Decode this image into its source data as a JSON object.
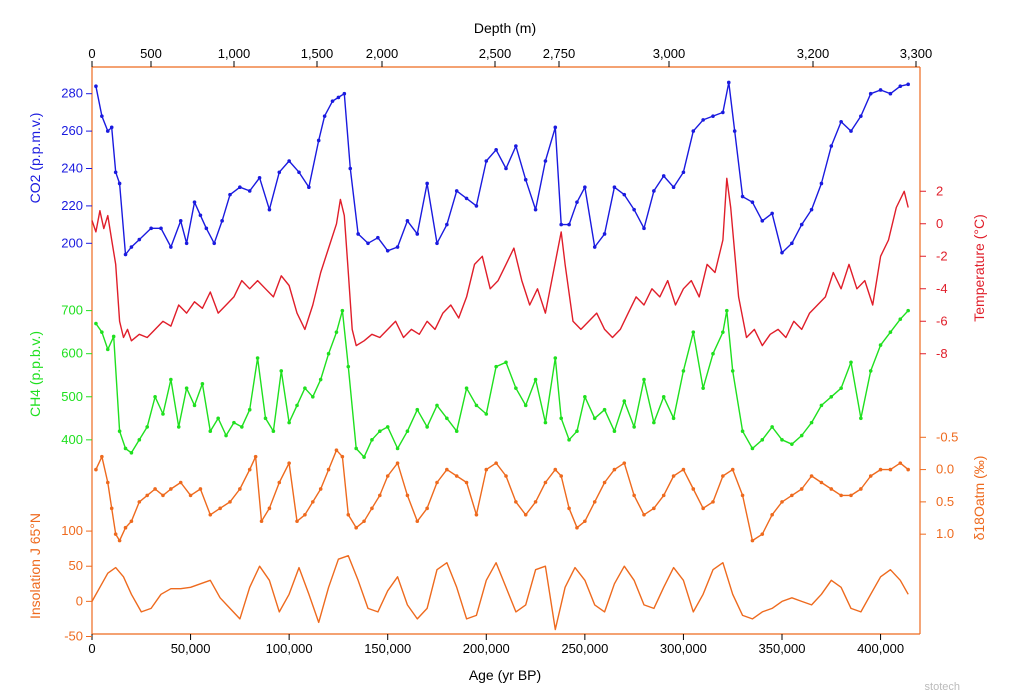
{
  "chart_data": {
    "type": "line",
    "top_axis": {
      "title": "Depth (m)",
      "ticks": [
        "0",
        "500",
        "1,000",
        "1,500",
        "2,000",
        "2,500",
        "2,750",
        "3,000",
        "3,200",
        "3,300"
      ],
      "color": "#000000"
    },
    "bottom_axis": {
      "title": "Age (yr BP)",
      "ticks": [
        "0",
        "50,000",
        "100,000",
        "150,000",
        "200,000",
        "250,000",
        "300,000",
        "350,000",
        "400,000"
      ],
      "range": [
        0,
        420000
      ],
      "color": "#000000"
    },
    "series": [
      {
        "name": "CO2",
        "label": "CO2 (p.p.m.v.)",
        "color": "#1a1adf",
        "axis_side": "left",
        "ticks": [
          "280",
          "260",
          "240",
          "220",
          "200"
        ],
        "tick_values": [
          280,
          260,
          240,
          220,
          200
        ],
        "ylim": [
          190,
          290
        ],
        "markers": true,
        "x": [
          2000,
          5000,
          8000,
          10000,
          12000,
          14000,
          17000,
          20000,
          24000,
          30000,
          35000,
          40000,
          45000,
          48000,
          52000,
          55000,
          58000,
          62000,
          66000,
          70000,
          75000,
          80000,
          85000,
          90000,
          95000,
          100000,
          105000,
          110000,
          115000,
          118000,
          122000,
          125000,
          128000,
          131000,
          135000,
          140000,
          145000,
          150000,
          155000,
          160000,
          165000,
          170000,
          175000,
          180000,
          185000,
          190000,
          195000,
          200000,
          205000,
          210000,
          215000,
          220000,
          225000,
          230000,
          235000,
          238000,
          242000,
          246000,
          250000,
          255000,
          260000,
          265000,
          270000,
          275000,
          280000,
          285000,
          290000,
          295000,
          300000,
          305000,
          310000,
          315000,
          320000,
          323000,
          326000,
          330000,
          335000,
          340000,
          345000,
          350000,
          355000,
          360000,
          365000,
          370000,
          375000,
          380000,
          385000,
          390000,
          395000,
          400000,
          405000,
          410000,
          414000
        ],
        "y": [
          284,
          268,
          260,
          262,
          238,
          232,
          194,
          198,
          202,
          208,
          208,
          198,
          212,
          200,
          222,
          215,
          208,
          200,
          212,
          226,
          230,
          228,
          235,
          218,
          238,
          244,
          238,
          230,
          255,
          268,
          276,
          278,
          280,
          240,
          205,
          200,
          203,
          196,
          198,
          212,
          205,
          232,
          200,
          210,
          228,
          224,
          220,
          244,
          250,
          240,
          252,
          234,
          218,
          244,
          262,
          210,
          210,
          222,
          230,
          198,
          205,
          230,
          226,
          218,
          208,
          228,
          236,
          230,
          238,
          260,
          266,
          268,
          270,
          286,
          260,
          225,
          222,
          212,
          216,
          195,
          200,
          210,
          218,
          232,
          252,
          265,
          260,
          268,
          280,
          282,
          280,
          284,
          285
        ]
      },
      {
        "name": "Temperature",
        "label": "Temperature (°C)",
        "color": "#e01e2a",
        "axis_side": "right",
        "ticks": [
          "2",
          "0",
          "-2",
          "-4",
          "-6",
          "-8"
        ],
        "tick_values": [
          2,
          0,
          -2,
          -4,
          -6,
          -8
        ],
        "ylim": [
          -9,
          3
        ],
        "markers": false,
        "x": [
          0,
          2000,
          4000,
          6000,
          8000,
          10000,
          12000,
          14000,
          16000,
          18000,
          20000,
          24000,
          28000,
          32000,
          36000,
          40000,
          44000,
          48000,
          52000,
          56000,
          60000,
          64000,
          68000,
          72000,
          76000,
          80000,
          84000,
          88000,
          92000,
          96000,
          100000,
          104000,
          108000,
          112000,
          116000,
          120000,
          124000,
          126000,
          128000,
          130000,
          132000,
          134000,
          138000,
          142000,
          146000,
          150000,
          154000,
          158000,
          162000,
          166000,
          170000,
          174000,
          178000,
          182000,
          186000,
          190000,
          194000,
          198000,
          202000,
          206000,
          210000,
          214000,
          218000,
          222000,
          226000,
          230000,
          234000,
          238000,
          240000,
          244000,
          248000,
          252000,
          256000,
          260000,
          264000,
          268000,
          272000,
          276000,
          280000,
          284000,
          288000,
          292000,
          296000,
          300000,
          304000,
          308000,
          312000,
          316000,
          320000,
          322000,
          324000,
          328000,
          332000,
          336000,
          340000,
          344000,
          348000,
          352000,
          356000,
          360000,
          364000,
          368000,
          372000,
          376000,
          380000,
          384000,
          388000,
          392000,
          396000,
          400000,
          404000,
          408000,
          412000,
          414000
        ],
        "y": [
          0.2,
          -0.5,
          0.8,
          -0.3,
          0.5,
          -1.0,
          -2.5,
          -6.0,
          -7.0,
          -6.5,
          -7.2,
          -6.8,
          -7.0,
          -6.5,
          -6.0,
          -6.3,
          -5.0,
          -5.5,
          -4.8,
          -5.2,
          -4.2,
          -5.5,
          -5.0,
          -4.5,
          -3.5,
          -4.0,
          -3.5,
          -4.0,
          -4.5,
          -3.2,
          -3.8,
          -5.5,
          -6.5,
          -5.0,
          -3.0,
          -1.5,
          0.0,
          1.5,
          0.5,
          -3.0,
          -6.5,
          -7.5,
          -7.2,
          -6.8,
          -7.0,
          -6.5,
          -6.0,
          -7.0,
          -6.5,
          -6.8,
          -6.0,
          -6.5,
          -5.5,
          -5.0,
          -5.8,
          -4.5,
          -2.5,
          -2.0,
          -4.0,
          -3.5,
          -2.5,
          -1.5,
          -3.5,
          -5.0,
          -4.0,
          -5.5,
          -3.0,
          -0.5,
          -2.5,
          -6.0,
          -6.5,
          -6.0,
          -5.5,
          -6.5,
          -7.0,
          -6.5,
          -5.5,
          -4.5,
          -5.0,
          -4.0,
          -4.5,
          -3.5,
          -5.0,
          -4.0,
          -3.5,
          -4.5,
          -2.5,
          -3.0,
          -1.0,
          2.8,
          1.0,
          -4.5,
          -7.0,
          -6.5,
          -7.5,
          -6.8,
          -6.5,
          -7.0,
          -6.0,
          -6.5,
          -5.5,
          -5.0,
          -4.5,
          -3.0,
          -4.0,
          -2.5,
          -4.0,
          -3.5,
          -5.0,
          -2.0,
          -1.0,
          1.0,
          2.0,
          1.0
        ]
      },
      {
        "name": "CH4",
        "label": "CH4 (p.p.b.v.)",
        "color": "#1fe01f",
        "axis_side": "left",
        "ticks": [
          "700",
          "600",
          "500",
          "400"
        ],
        "tick_values": [
          700,
          600,
          500,
          400
        ],
        "ylim": [
          330,
          720
        ],
        "markers": true,
        "x": [
          2000,
          5000,
          8000,
          11000,
          14000,
          17000,
          20000,
          24000,
          28000,
          32000,
          36000,
          40000,
          44000,
          48000,
          52000,
          56000,
          60000,
          64000,
          68000,
          72000,
          76000,
          80000,
          84000,
          88000,
          92000,
          96000,
          100000,
          104000,
          108000,
          112000,
          116000,
          120000,
          124000,
          127000,
          130000,
          134000,
          138000,
          142000,
          146000,
          150000,
          155000,
          160000,
          165000,
          170000,
          175000,
          180000,
          185000,
          190000,
          195000,
          200000,
          205000,
          210000,
          215000,
          220000,
          225000,
          230000,
          235000,
          238000,
          242000,
          246000,
          250000,
          255000,
          260000,
          265000,
          270000,
          275000,
          280000,
          285000,
          290000,
          295000,
          300000,
          305000,
          310000,
          315000,
          320000,
          322000,
          325000,
          330000,
          335000,
          340000,
          345000,
          350000,
          355000,
          360000,
          365000,
          370000,
          375000,
          380000,
          385000,
          390000,
          395000,
          400000,
          405000,
          410000,
          414000
        ],
        "y": [
          670,
          650,
          610,
          640,
          420,
          380,
          370,
          400,
          430,
          500,
          460,
          540,
          430,
          520,
          480,
          530,
          420,
          450,
          410,
          440,
          430,
          470,
          590,
          450,
          420,
          560,
          440,
          480,
          520,
          500,
          540,
          600,
          650,
          700,
          570,
          380,
          360,
          400,
          420,
          430,
          380,
          420,
          470,
          430,
          480,
          450,
          420,
          520,
          480,
          460,
          570,
          580,
          520,
          480,
          540,
          440,
          590,
          450,
          400,
          420,
          500,
          450,
          470,
          420,
          490,
          430,
          540,
          440,
          500,
          450,
          560,
          650,
          520,
          600,
          650,
          700,
          560,
          420,
          380,
          400,
          430,
          400,
          390,
          410,
          440,
          480,
          500,
          520,
          580,
          450,
          560,
          620,
          650,
          680,
          700
        ]
      },
      {
        "name": "δ18Oatm",
        "label": "δ18Oatm (‰)",
        "color": "#ee6a1e",
        "axis_side": "right",
        "ticks": [
          "-0.5",
          "0.0",
          "0.5",
          "1.0"
        ],
        "tick_values": [
          -0.5,
          0.0,
          0.5,
          1.0
        ],
        "ylim": [
          -1.0,
          1.4
        ],
        "invert": true,
        "markers": true,
        "x": [
          2000,
          5000,
          8000,
          10000,
          12000,
          14000,
          17000,
          20000,
          24000,
          28000,
          32000,
          36000,
          40000,
          45000,
          50000,
          55000,
          60000,
          65000,
          70000,
          75000,
          80000,
          83000,
          86000,
          90000,
          95000,
          100000,
          104000,
          108000,
          112000,
          116000,
          120000,
          124000,
          127000,
          130000,
          134000,
          138000,
          142000,
          146000,
          150000,
          155000,
          160000,
          165000,
          170000,
          175000,
          180000,
          185000,
          190000,
          195000,
          200000,
          205000,
          210000,
          215000,
          220000,
          225000,
          230000,
          235000,
          238000,
          242000,
          246000,
          250000,
          255000,
          260000,
          265000,
          270000,
          275000,
          280000,
          285000,
          290000,
          295000,
          300000,
          305000,
          310000,
          315000,
          320000,
          325000,
          330000,
          335000,
          340000,
          345000,
          350000,
          355000,
          360000,
          365000,
          370000,
          375000,
          380000,
          385000,
          390000,
          395000,
          400000,
          405000,
          410000,
          414000
        ],
        "y": [
          0.0,
          -0.2,
          0.2,
          0.6,
          1.0,
          1.1,
          0.9,
          0.8,
          0.5,
          0.4,
          0.3,
          0.4,
          0.3,
          0.2,
          0.4,
          0.3,
          0.7,
          0.6,
          0.5,
          0.3,
          0.0,
          -0.2,
          0.8,
          0.6,
          0.2,
          -0.1,
          0.8,
          0.7,
          0.5,
          0.3,
          0.0,
          -0.3,
          -0.2,
          0.7,
          0.9,
          0.8,
          0.6,
          0.4,
          0.1,
          -0.1,
          0.4,
          0.8,
          0.6,
          0.2,
          0.0,
          0.1,
          0.2,
          0.7,
          0.0,
          -0.1,
          0.1,
          0.5,
          0.7,
          0.5,
          0.2,
          0.0,
          0.1,
          0.6,
          0.9,
          0.8,
          0.5,
          0.2,
          0.0,
          -0.1,
          0.4,
          0.7,
          0.6,
          0.4,
          0.1,
          0.0,
          0.3,
          0.6,
          0.5,
          0.1,
          0.0,
          0.4,
          1.1,
          1.0,
          0.7,
          0.5,
          0.4,
          0.3,
          0.1,
          0.2,
          0.3,
          0.4,
          0.4,
          0.3,
          0.1,
          0.0,
          0.0,
          -0.1,
          0.0
        ]
      },
      {
        "name": "Insolation",
        "label": "Insolation J 65°N",
        "color": "#ee6a1e",
        "axis_side": "left",
        "ticks": [
          "100",
          "50",
          "0",
          "-50"
        ],
        "tick_values": [
          100,
          50,
          0,
          -50
        ],
        "ylim": [
          -55,
          130
        ],
        "markers": false,
        "x": [
          0,
          4000,
          8000,
          12000,
          16000,
          20000,
          25000,
          30000,
          35000,
          40000,
          45000,
          50000,
          55000,
          60000,
          65000,
          70000,
          75000,
          80000,
          85000,
          90000,
          95000,
          100000,
          105000,
          110000,
          115000,
          120000,
          125000,
          130000,
          135000,
          140000,
          145000,
          150000,
          155000,
          160000,
          165000,
          170000,
          175000,
          180000,
          185000,
          190000,
          195000,
          200000,
          205000,
          210000,
          215000,
          220000,
          225000,
          230000,
          235000,
          240000,
          245000,
          250000,
          255000,
          260000,
          265000,
          270000,
          275000,
          280000,
          285000,
          290000,
          295000,
          300000,
          305000,
          310000,
          315000,
          320000,
          325000,
          330000,
          335000,
          340000,
          345000,
          350000,
          355000,
          360000,
          365000,
          370000,
          375000,
          380000,
          385000,
          390000,
          395000,
          400000,
          405000,
          410000,
          414000
        ],
        "y": [
          0,
          20,
          40,
          48,
          35,
          10,
          -15,
          -10,
          10,
          18,
          18,
          20,
          25,
          30,
          5,
          -10,
          -25,
          20,
          50,
          30,
          -15,
          10,
          48,
          10,
          -30,
          20,
          60,
          65,
          30,
          -10,
          -15,
          15,
          35,
          -5,
          -25,
          -10,
          45,
          55,
          20,
          -25,
          -20,
          30,
          55,
          20,
          -15,
          -5,
          45,
          50,
          -40,
          20,
          48,
          30,
          -5,
          -15,
          25,
          50,
          30,
          -5,
          -10,
          20,
          48,
          30,
          -15,
          10,
          45,
          55,
          10,
          -20,
          -25,
          -15,
          -10,
          0,
          5,
          0,
          -5,
          10,
          30,
          20,
          -10,
          -15,
          10,
          35,
          45,
          30,
          10
        ]
      }
    ]
  },
  "watermark": "stotech"
}
